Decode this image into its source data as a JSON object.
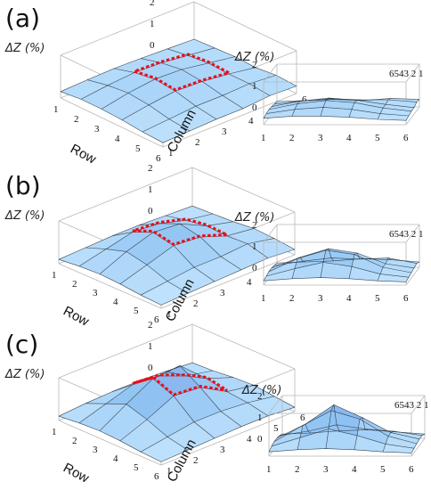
{
  "figure": {
    "panels": [
      "(a)",
      "(b)",
      "(c)"
    ],
    "z_label": "ΔZ (%)",
    "row_label": "Row",
    "column_label": "Column",
    "z_ticks": [
      "0",
      "1",
      "2"
    ],
    "row_ticks": [
      "1",
      "2",
      "3",
      "4",
      "5",
      "6"
    ],
    "column_ticks": [
      "1",
      "2",
      "3",
      "4",
      "5",
      "6"
    ],
    "side_depth_ticks": "6543 2 1",
    "colors": {
      "surface": "#7fc4ec",
      "surface_light": "#d8efff",
      "grid": "#222a33",
      "highlight": "#e8101a",
      "box": "#b8b8b8"
    }
  },
  "chart_data": [
    {
      "type": "surface",
      "panel": "(a)",
      "xlabel": "Row",
      "ylabel": "Column",
      "zlabel": "ΔZ (%)",
      "x": [
        1,
        2,
        3,
        4,
        5,
        6
      ],
      "y": [
        1,
        2,
        3,
        4,
        5,
        6
      ],
      "zlim": [
        0,
        2
      ],
      "z": [
        [
          0.3,
          0.35,
          0.38,
          0.35,
          0.3,
          0.25
        ],
        [
          0.4,
          0.55,
          0.65,
          0.6,
          0.45,
          0.3
        ],
        [
          0.4,
          0.65,
          0.8,
          0.75,
          0.55,
          0.35
        ],
        [
          0.35,
          0.55,
          0.7,
          0.65,
          0.5,
          0.3
        ],
        [
          0.25,
          0.35,
          0.45,
          0.45,
          0.5,
          0.4
        ],
        [
          0.2,
          0.25,
          0.3,
          0.3,
          0.4,
          0.35
        ]
      ],
      "highlight": {
        "rows": [
          2,
          4
        ],
        "columns": [
          3,
          5
        ]
      }
    },
    {
      "type": "surface",
      "panel": "(b)",
      "xlabel": "Row",
      "ylabel": "Column",
      "zlabel": "ΔZ (%)",
      "x": [
        1,
        2,
        3,
        4,
        5,
        6
      ],
      "y": [
        1,
        2,
        3,
        4,
        5,
        6
      ],
      "zlim": [
        0,
        2
      ],
      "z": [
        [
          0.2,
          0.25,
          0.3,
          0.3,
          0.25,
          0.2
        ],
        [
          0.3,
          0.6,
          0.9,
          0.8,
          0.45,
          0.25
        ],
        [
          0.35,
          0.9,
          1.3,
          1.2,
          0.6,
          0.3
        ],
        [
          0.3,
          0.7,
          1.1,
          1.0,
          0.55,
          0.4
        ],
        [
          0.2,
          0.35,
          0.5,
          0.5,
          0.6,
          0.35
        ],
        [
          0.15,
          0.2,
          0.25,
          0.3,
          0.35,
          0.25
        ]
      ],
      "highlight": {
        "rows": [
          2,
          4
        ],
        "columns": [
          3,
          5
        ]
      }
    },
    {
      "type": "surface",
      "panel": "(c)",
      "xlabel": "Row",
      "ylabel": "Column",
      "zlabel": "ΔZ (%)",
      "x": [
        1,
        2,
        3,
        4,
        5,
        6
      ],
      "y": [
        1,
        2,
        3,
        4,
        5,
        6
      ],
      "zlim": [
        0,
        2
      ],
      "z": [
        [
          0.2,
          0.3,
          0.35,
          0.35,
          0.3,
          0.2
        ],
        [
          0.3,
          0.7,
          1.1,
          1.0,
          0.5,
          0.25
        ],
        [
          0.35,
          1.1,
          1.8,
          1.9,
          0.8,
          0.35
        ],
        [
          0.3,
          0.8,
          1.4,
          1.3,
          0.6,
          0.4
        ],
        [
          0.2,
          0.4,
          0.6,
          0.6,
          0.5,
          0.3
        ],
        [
          0.15,
          0.2,
          0.25,
          0.3,
          0.3,
          0.2
        ]
      ],
      "highlight": {
        "rows": [
          2,
          4
        ],
        "columns": [
          3,
          5
        ]
      }
    }
  ]
}
